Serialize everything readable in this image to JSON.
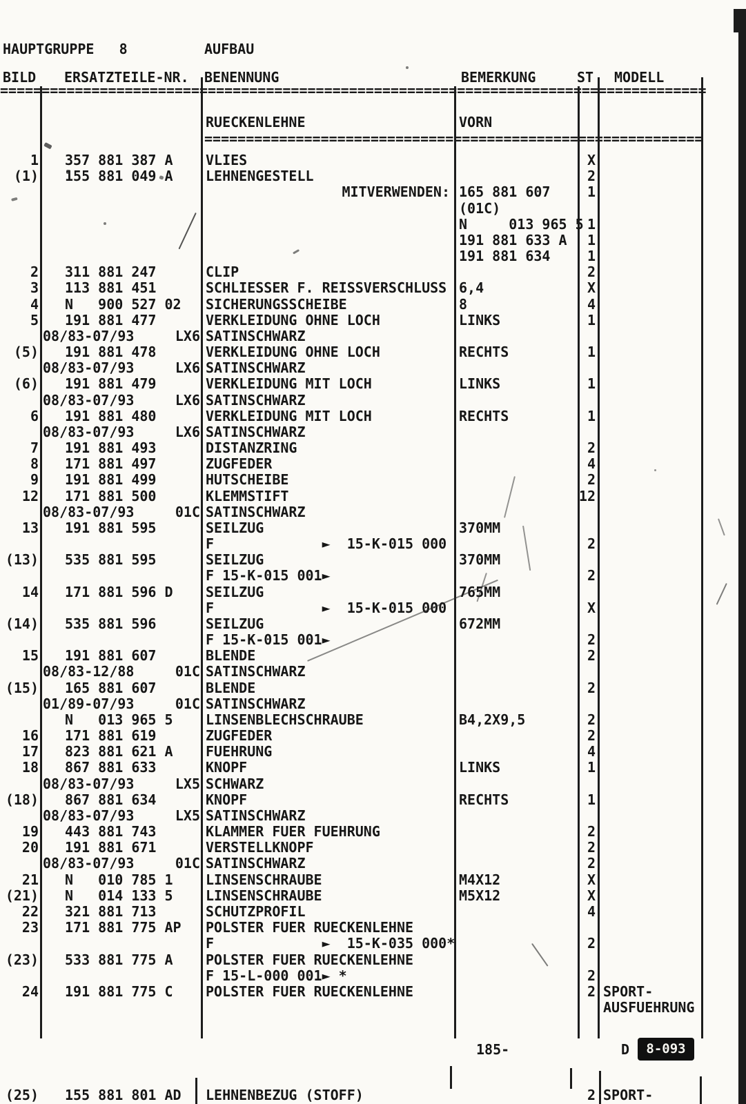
{
  "page": {
    "paper_color": "#fbfaf6",
    "ink_color": "#161616"
  },
  "header": {
    "title_left": "HAUPTGRUPPE   8",
    "title_right": "AUFBAU"
  },
  "columns": {
    "bild": "BILD",
    "nr": "ERSATZTEILE-NR.",
    "ben": "BENENNUNG",
    "bem": "BEMERKUNG",
    "st": "ST",
    "mod": "MODELL"
  },
  "section": {
    "ben": "RUECKENLEHNE",
    "bem": "VORN"
  },
  "table": {
    "rows": [
      {
        "bild": "1",
        "nr": "357 881 387 A",
        "ben": "VLIES",
        "st": "X"
      },
      {
        "bild": "(1)",
        "nr": "155 881 049 A",
        "ben": "LEHNENGESTELL",
        "st": "2"
      },
      {
        "mitv": "MITVERWENDEN:",
        "bem": "165 881 607",
        "st": "1"
      },
      {
        "bem": "(01C)"
      },
      {
        "bem": "N     013 965 5",
        "st": "1"
      },
      {
        "bem": "191 881 633 A",
        "st": "1"
      },
      {
        "bem": "191 881 634",
        "st": "1"
      },
      {
        "bild": "2",
        "nr": "311 881 247",
        "ben": "CLIP",
        "st": "2"
      },
      {
        "bild": "3",
        "nr": "113 881 451",
        "ben": "SCHLIESSER F. REISSVERSCHLUSS",
        "bem": "6,4",
        "st": "X"
      },
      {
        "bild": "4",
        "nr": "N   900 527 02",
        "ben": "SICHERUNGSSCHEIBE",
        "bem": "8",
        "st": "4"
      },
      {
        "bild": "5",
        "nr": "191 881 477",
        "ben": "VERKLEIDUNG OHNE LOCH",
        "bem": "LINKS",
        "st": "1"
      },
      {
        "date": "08/83-07/93",
        "code": "LX6",
        "ben": "SATINSCHWARZ"
      },
      {
        "bild": "(5)",
        "nr": "191 881 478",
        "ben": "VERKLEIDUNG OHNE LOCH",
        "bem": "RECHTS",
        "st": "1"
      },
      {
        "date": "08/83-07/93",
        "code": "LX6",
        "ben": "SATINSCHWARZ"
      },
      {
        "bild": "(6)",
        "nr": "191 881 479",
        "ben": "VERKLEIDUNG MIT LOCH",
        "bem": "LINKS",
        "st": "1"
      },
      {
        "date": "08/83-07/93",
        "code": "LX6",
        "ben": "SATINSCHWARZ"
      },
      {
        "bild": "6",
        "nr": "191 881 480",
        "ben": "VERKLEIDUNG MIT LOCH",
        "bem": "RECHTS",
        "st": "1"
      },
      {
        "date": "08/83-07/93",
        "code": "LX6",
        "ben": "SATINSCHWARZ"
      },
      {
        "bild": "7",
        "nr": "191 881 493",
        "ben": "DISTANZRING",
        "st": "2"
      },
      {
        "bild": "8",
        "nr": "171 881 497",
        "ben": "ZUGFEDER",
        "st": "4"
      },
      {
        "bild": "9",
        "nr": "191 881 499",
        "ben": "HUTSCHEIBE",
        "st": "2"
      },
      {
        "bild": "12",
        "nr": "171 881 500",
        "ben": "KLEMMSTIFT",
        "st": "12"
      },
      {
        "date": "08/83-07/93",
        "code": "01C",
        "ben": "SATINSCHWARZ"
      },
      {
        "bild": "13",
        "nr": "191 881 595",
        "ben": "SEILZUG",
        "bem": "370MM"
      },
      {
        "ben": "F             ►  15-K-015 000",
        "st": "2"
      },
      {
        "bild": "(13)",
        "nr": "535 881 595",
        "ben": "SEILZUG",
        "bem": "370MM"
      },
      {
        "ben": "F 15-K-015 001►",
        "st": "2"
      },
      {
        "bild": "14",
        "nr": "171 881 596 D",
        "ben": "SEILZUG",
        "bem": "765MM"
      },
      {
        "ben": "F             ►  15-K-015 000",
        "st": "X"
      },
      {
        "bild": "(14)",
        "nr": "535 881 596",
        "ben": "SEILZUG",
        "bem": "672MM"
      },
      {
        "ben": "F 15-K-015 001►",
        "st": "2"
      },
      {
        "bild": "15",
        "nr": "191 881 607",
        "ben": "BLENDE",
        "st": "2"
      },
      {
        "date": "08/83-12/88",
        "code": "01C",
        "ben": "SATINSCHWARZ"
      },
      {
        "bild": "(15)",
        "nr": "165 881 607",
        "ben": "BLENDE",
        "st": "2"
      },
      {
        "date": "01/89-07/93",
        "code": "01C",
        "ben": "SATINSCHWARZ"
      },
      {
        "nr": "N   013 965 5",
        "ben": "LINSENBLECHSCHRAUBE",
        "bem": "B4,2X9,5",
        "st": "2"
      },
      {
        "bild": "16",
        "nr": "171 881 619",
        "ben": "ZUGFEDER",
        "st": "2"
      },
      {
        "bild": "17",
        "nr": "823 881 621 A",
        "ben": "FUEHRUNG",
        "st": "4"
      },
      {
        "bild": "18",
        "nr": "867 881 633",
        "ben": "KNOPF",
        "bem": "LINKS",
        "st": "1"
      },
      {
        "date": "08/83-07/93",
        "code": "LX5",
        "ben": "SCHWARZ"
      },
      {
        "bild": "(18)",
        "nr": "867 881 634",
        "ben": "KNOPF",
        "bem": "RECHTS",
        "st": "1"
      },
      {
        "date": "08/83-07/93",
        "code": "LX5",
        "ben": "SATINSCHWARZ"
      },
      {
        "bild": "19",
        "nr": "443 881 743",
        "ben": "KLAMMER FUER FUEHRUNG",
        "st": "2"
      },
      {
        "bild": "20",
        "nr": "191 881 671",
        "ben": "VERSTELLKNOPF",
        "st": "2"
      },
      {
        "date": "08/83-07/93",
        "code": "01C",
        "ben": "SATINSCHWARZ",
        "st": "2"
      },
      {
        "bild": "21",
        "nr": "N   010 785 1",
        "ben": "LINSENSCHRAUBE",
        "bem": "M4X12",
        "st": "X"
      },
      {
        "bild": "(21)",
        "nr": "N   014 133 5",
        "ben": "LINSENSCHRAUBE",
        "bem": "M5X12",
        "st": "X"
      },
      {
        "bild": "22",
        "nr": "321 881 713",
        "ben": "SCHUTZPROFIL",
        "st": "4"
      },
      {
        "bild": "23",
        "nr": "171 881 775 AP",
        "ben": "POLSTER FUER RUECKENLEHNE"
      },
      {
        "ben": "F             ►  15-K-035 000*",
        "st": "2"
      },
      {
        "bild": "(23)",
        "nr": "533 881 775 A",
        "ben": "POLSTER FUER RUECKENLEHNE"
      },
      {
        "ben": "F 15-L-000 001► *",
        "st": "2"
      },
      {
        "bild": "24",
        "nr": "191 881 775 C",
        "ben": "POLSTER FUER RUECKENLEHNE",
        "st": "2",
        "mod": "SPORT-"
      },
      {
        "mod": "AUSFUEHRUNG"
      }
    ]
  },
  "bottom_row": {
    "bild": "(25)",
    "nr": "155 881 801 AD",
    "ben": "LEHNENBEZUG (STOFF)",
    "st": "2",
    "mod": "SPORT-"
  },
  "footer": {
    "page_number": "185-",
    "code_prefix": "D",
    "code_badge": "8-093"
  }
}
